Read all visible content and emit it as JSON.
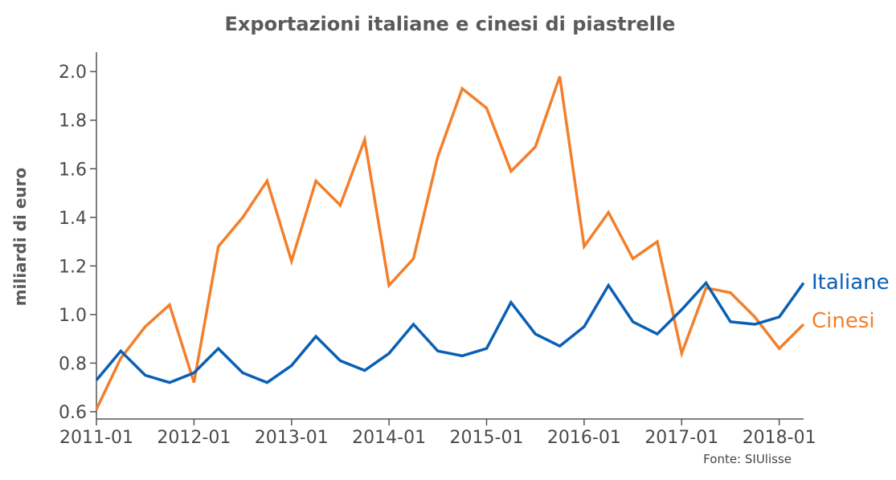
{
  "chart_data": {
    "type": "line",
    "title": "Exportazioni italiane e cinesi di piastrelle",
    "xlabel": "",
    "ylabel": "miliardi di euro",
    "source": "Fonte: SIUlisse",
    "x": [
      "2011-01",
      "2011-04",
      "2011-07",
      "2011-10",
      "2012-01",
      "2012-04",
      "2012-07",
      "2012-10",
      "2013-01",
      "2013-04",
      "2013-07",
      "2013-10",
      "2014-01",
      "2014-04",
      "2014-07",
      "2014-10",
      "2015-01",
      "2015-04",
      "2015-07",
      "2015-10",
      "2016-01",
      "2016-04",
      "2016-07",
      "2016-10",
      "2017-01",
      "2017-04",
      "2017-07",
      "2017-10",
      "2018-01",
      "2018-04"
    ],
    "x_ticks": [
      "2011-01",
      "2012-01",
      "2013-01",
      "2014-01",
      "2015-01",
      "2016-01",
      "2017-01",
      "2018-01"
    ],
    "y_ticks": [
      "0.6",
      "0.8",
      "1.0",
      "1.2",
      "1.4",
      "1.6",
      "1.8",
      "2.0"
    ],
    "ylim": [
      0.57,
      2.08
    ],
    "grid": false,
    "series": [
      {
        "name": "Italiane",
        "color": "#0a5fb4",
        "values": [
          0.73,
          0.85,
          0.75,
          0.72,
          0.76,
          0.86,
          0.76,
          0.72,
          0.79,
          0.91,
          0.81,
          0.77,
          0.84,
          0.96,
          0.85,
          0.83,
          0.86,
          1.05,
          0.92,
          0.87,
          0.95,
          1.12,
          0.97,
          0.92,
          1.02,
          1.13,
          0.97,
          0.96,
          0.99,
          1.13
        ]
      },
      {
        "name": "Cinesi",
        "color": "#f47f2b",
        "values": [
          0.61,
          0.82,
          0.95,
          1.04,
          0.72,
          1.28,
          1.4,
          1.55,
          1.22,
          1.55,
          1.45,
          1.72,
          1.12,
          1.23,
          1.65,
          1.93,
          1.85,
          1.59,
          1.69,
          1.98,
          1.28,
          1.42,
          1.23,
          1.3,
          0.84,
          1.11,
          1.09,
          0.99,
          0.86,
          0.96
        ]
      }
    ]
  }
}
